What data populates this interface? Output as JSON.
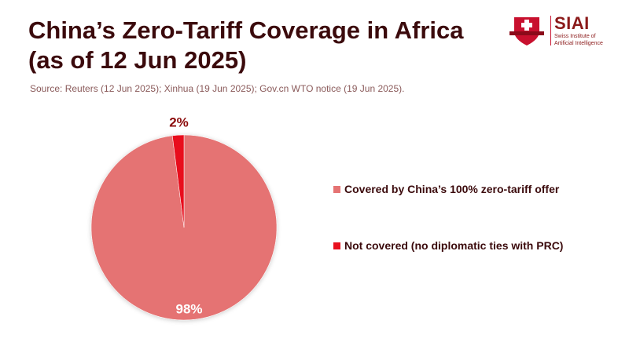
{
  "title": "China’s Zero-Tariff Coverage in Africa (as of 12 Jun 2025)",
  "source": "Source: Reuters (12 Jun 2025); Xinhua (19 Jun 2025); Gov.cn WTO notice (19 Jun 2025).",
  "logo": {
    "name": "SIAI",
    "subtitle1": "Swiss Institute of",
    "subtitle2": "Artificial Intelligence"
  },
  "chart_data": {
    "type": "pie",
    "legend_placement": "right",
    "slices": [
      {
        "name": "Covered by China’s 100% zero-tariff offer",
        "value": 98,
        "label": "98%",
        "color": "#E57373"
      },
      {
        "name": "Not covered (no diplomatic ties with PRC)",
        "value": 2,
        "label": "2%",
        "color": "#E8101E"
      }
    ]
  }
}
